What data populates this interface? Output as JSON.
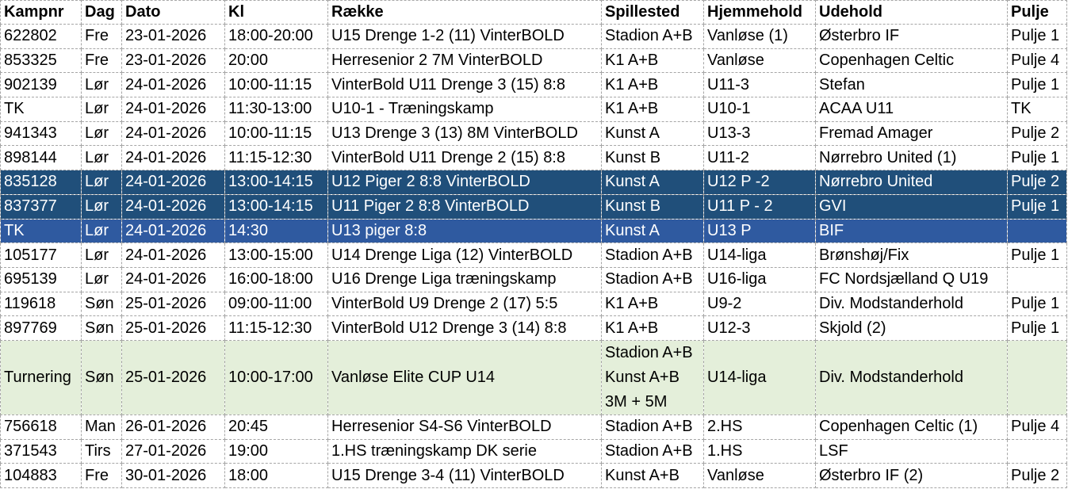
{
  "table": {
    "headers": [
      "Kampnr",
      "Dag",
      "Dato",
      "Kl",
      "Række",
      "Spillested",
      "Hjemmehold",
      "Udehold",
      "Pulje"
    ],
    "rows": [
      {
        "style": "",
        "cells": [
          "622802",
          "Fre",
          "23-01-2026",
          "18:00-20:00",
          "U15 Drenge 1-2 (11) VinterBOLD",
          "Stadion A+B",
          "Vanløse (1)",
          "Østerbro IF",
          "Pulje 1"
        ]
      },
      {
        "style": "",
        "cells": [
          "853325",
          "Fre",
          "23-01-2026",
          "20:00",
          "Herresenior 2 7M VinterBOLD",
          "K1 A+B",
          "Vanløse",
          "Copenhagen Celtic",
          "Pulje 4"
        ]
      },
      {
        "style": "",
        "cells": [
          "902139",
          "Lør",
          "24-01-2026",
          "10:00-11:15",
          "VinterBold U11 Drenge 3 (15) 8:8",
          "K1 A+B",
          "U11-3",
          "Stefan",
          "Pulje 1"
        ]
      },
      {
        "style": "",
        "cells": [
          "TK",
          "Lør",
          "24-01-2026",
          "11:30-13:00",
          "U10-1 - Træningskamp",
          "K1 A+B",
          "U10-1",
          "ACAA U11",
          "TK"
        ]
      },
      {
        "style": "",
        "cells": [
          "941343",
          "Lør",
          "24-01-2026",
          "10:00-11:15",
          "U13 Drenge 3 (13) 8M VinterBOLD",
          "Kunst A",
          "U13-3",
          "Fremad Amager",
          "Pulje 2"
        ]
      },
      {
        "style": "",
        "cells": [
          "898144",
          "Lør",
          "24-01-2026",
          "11:15-12:30",
          "VinterBold U11 Drenge 2 (15) 8:8",
          "Kunst B",
          "U11-2",
          "Nørrebro United (1)",
          "Pulje 1"
        ]
      },
      {
        "style": "dark",
        "cells": [
          "835128",
          "Lør",
          "24-01-2026",
          "13:00-14:15",
          "U12 Piger 2 8:8 VinterBOLD",
          "Kunst A",
          "U12 P -2",
          "Nørrebro United",
          "Pulje 2"
        ]
      },
      {
        "style": "dark",
        "cells": [
          "837377",
          "Lør",
          "24-01-2026",
          "13:00-14:15",
          "U11 Piger 2 8:8 VinterBOLD",
          "Kunst B",
          "U11 P - 2",
          "GVI",
          "Pulje 1"
        ]
      },
      {
        "style": "mid",
        "cells": [
          "TK",
          "Lør",
          "24-01-2026",
          "14:30",
          "U13 piger 8:8",
          "Kunst A",
          "U13 P",
          "BIF",
          ""
        ]
      },
      {
        "style": "",
        "cells": [
          "105177",
          "Lør",
          "24-01-2026",
          "13:00-15:00",
          "U14 Drenge Liga (12) VinterBOLD",
          "Stadion A+B",
          "U14-liga",
          "Brønshøj/Fix",
          "Pulje 1"
        ]
      },
      {
        "style": "",
        "cells": [
          "695139",
          "Lør",
          "24-01-2026",
          "16:00-18:00",
          "U16 Drenge Liga træningskamp",
          "Stadion A+B",
          "U16-liga",
          "FC Nordsjælland Q U19",
          ""
        ]
      },
      {
        "style": "",
        "cells": [
          "119618",
          "Søn",
          "25-01-2026",
          "09:00-11:00",
          "VinterBold U9 Drenge 2 (17) 5:5",
          "K1 A+B",
          "U9-2",
          "Div. Modstanderhold",
          "Pulje 1"
        ]
      },
      {
        "style": "",
        "cells": [
          "897769",
          "Søn",
          "25-01-2026",
          "11:15-12:30",
          "VinterBold U12 Drenge 3 (14) 8:8",
          "K1 A+B",
          "U12-3",
          "Skjold (2)",
          "Pulje 1"
        ]
      },
      {
        "style": "green tall",
        "cells": [
          "Turnering",
          "Søn",
          "25-01-2026",
          "10:00-17:00",
          "Vanløse Elite CUP U14",
          "Stadion A+B\nKunst A+B\n3M + 5M",
          "U14-liga",
          "Div. Modstanderhold",
          ""
        ]
      },
      {
        "style": "",
        "cells": [
          "756618",
          "Man",
          "26-01-2026",
          "20:45",
          "Herresenior S4-S6 VinterBOLD",
          "Stadion A+B",
          "2.HS",
          "Copenhagen Celtic (1)",
          "Pulje 4"
        ]
      },
      {
        "style": "",
        "cells": [
          "371543",
          "Tirs",
          "27-01-2026",
          "19:00",
          "1.HS træningskamp DK serie",
          "Stadion A+B",
          "1.HS",
          "LSF",
          ""
        ]
      },
      {
        "style": "",
        "cells": [
          "104883",
          "Fre",
          "30-01-2026",
          "18:00",
          "U15 Drenge 3-4 (11) VinterBOLD",
          "Kunst A+B",
          "Vanløse",
          "Østerbro IF (2)",
          "Pulje 2"
        ]
      }
    ]
  },
  "colors": {
    "highlight_dark": "#204f7a",
    "highlight_mid": "#2f5aa0",
    "tournament_bg": "#e4efda",
    "grid_line": "#a6a6a6"
  }
}
